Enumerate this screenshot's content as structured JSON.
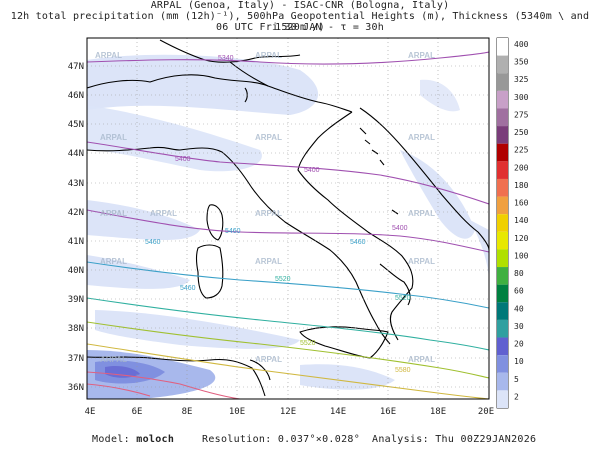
{
  "header": {
    "line1": "ARPAL (Genoa, Italy)  -  ISAC-CNR (Bologna, Italy)",
    "line2": "12h total precipitation (mm (12h)⁻¹), 500hPa Geopotential Heights (m), Thickness (5340m \\ and 1520m /)",
    "line3": "06 UTC Fri 30 JAN  -  τ = 30h"
  },
  "map": {
    "lat_labels": [
      "47N",
      "46N",
      "45N",
      "44N",
      "43N",
      "42N",
      "41N",
      "40N",
      "39N",
      "38N",
      "37N",
      "36N"
    ],
    "lon_labels": [
      "4E",
      "6E",
      "8E",
      "10E",
      "12E",
      "14E",
      "16E",
      "18E",
      "20E"
    ],
    "watermark": "ARPAL",
    "contour_labels": [
      "5340",
      "5400",
      "5400",
      "5400",
      "5460",
      "5460",
      "5460",
      "5460",
      "5520",
      "5520",
      "5520",
      "5580"
    ]
  },
  "colorbar": {
    "levels": [
      "400",
      "350",
      "325",
      "300",
      "275",
      "250",
      "225",
      "200",
      "180",
      "160",
      "140",
      "120",
      "100",
      "80",
      "60",
      "40",
      "30",
      "20",
      "10",
      "5",
      "2"
    ],
    "colors": [
      "#ffffff",
      "#b0b0b0",
      "#989898",
      "#c8a0c8",
      "#a070a0",
      "#7a3d7a",
      "#b00000",
      "#e03030",
      "#f07050",
      "#f0a040",
      "#f0d000",
      "#e8e800",
      "#b0e000",
      "#40b040",
      "#008040",
      "#007878",
      "#30a0a0",
      "#6060d0",
      "#8090e0",
      "#a8b8ec",
      "#dce4f8"
    ]
  },
  "footer": {
    "model_label": "Model:",
    "model_value": "moloch",
    "resolution_label": "Resolution:",
    "resolution_value": "0.037°×0.028°",
    "analysis_label": "Analysis:",
    "analysis_value": "Thu 00Z29JAN2026"
  }
}
